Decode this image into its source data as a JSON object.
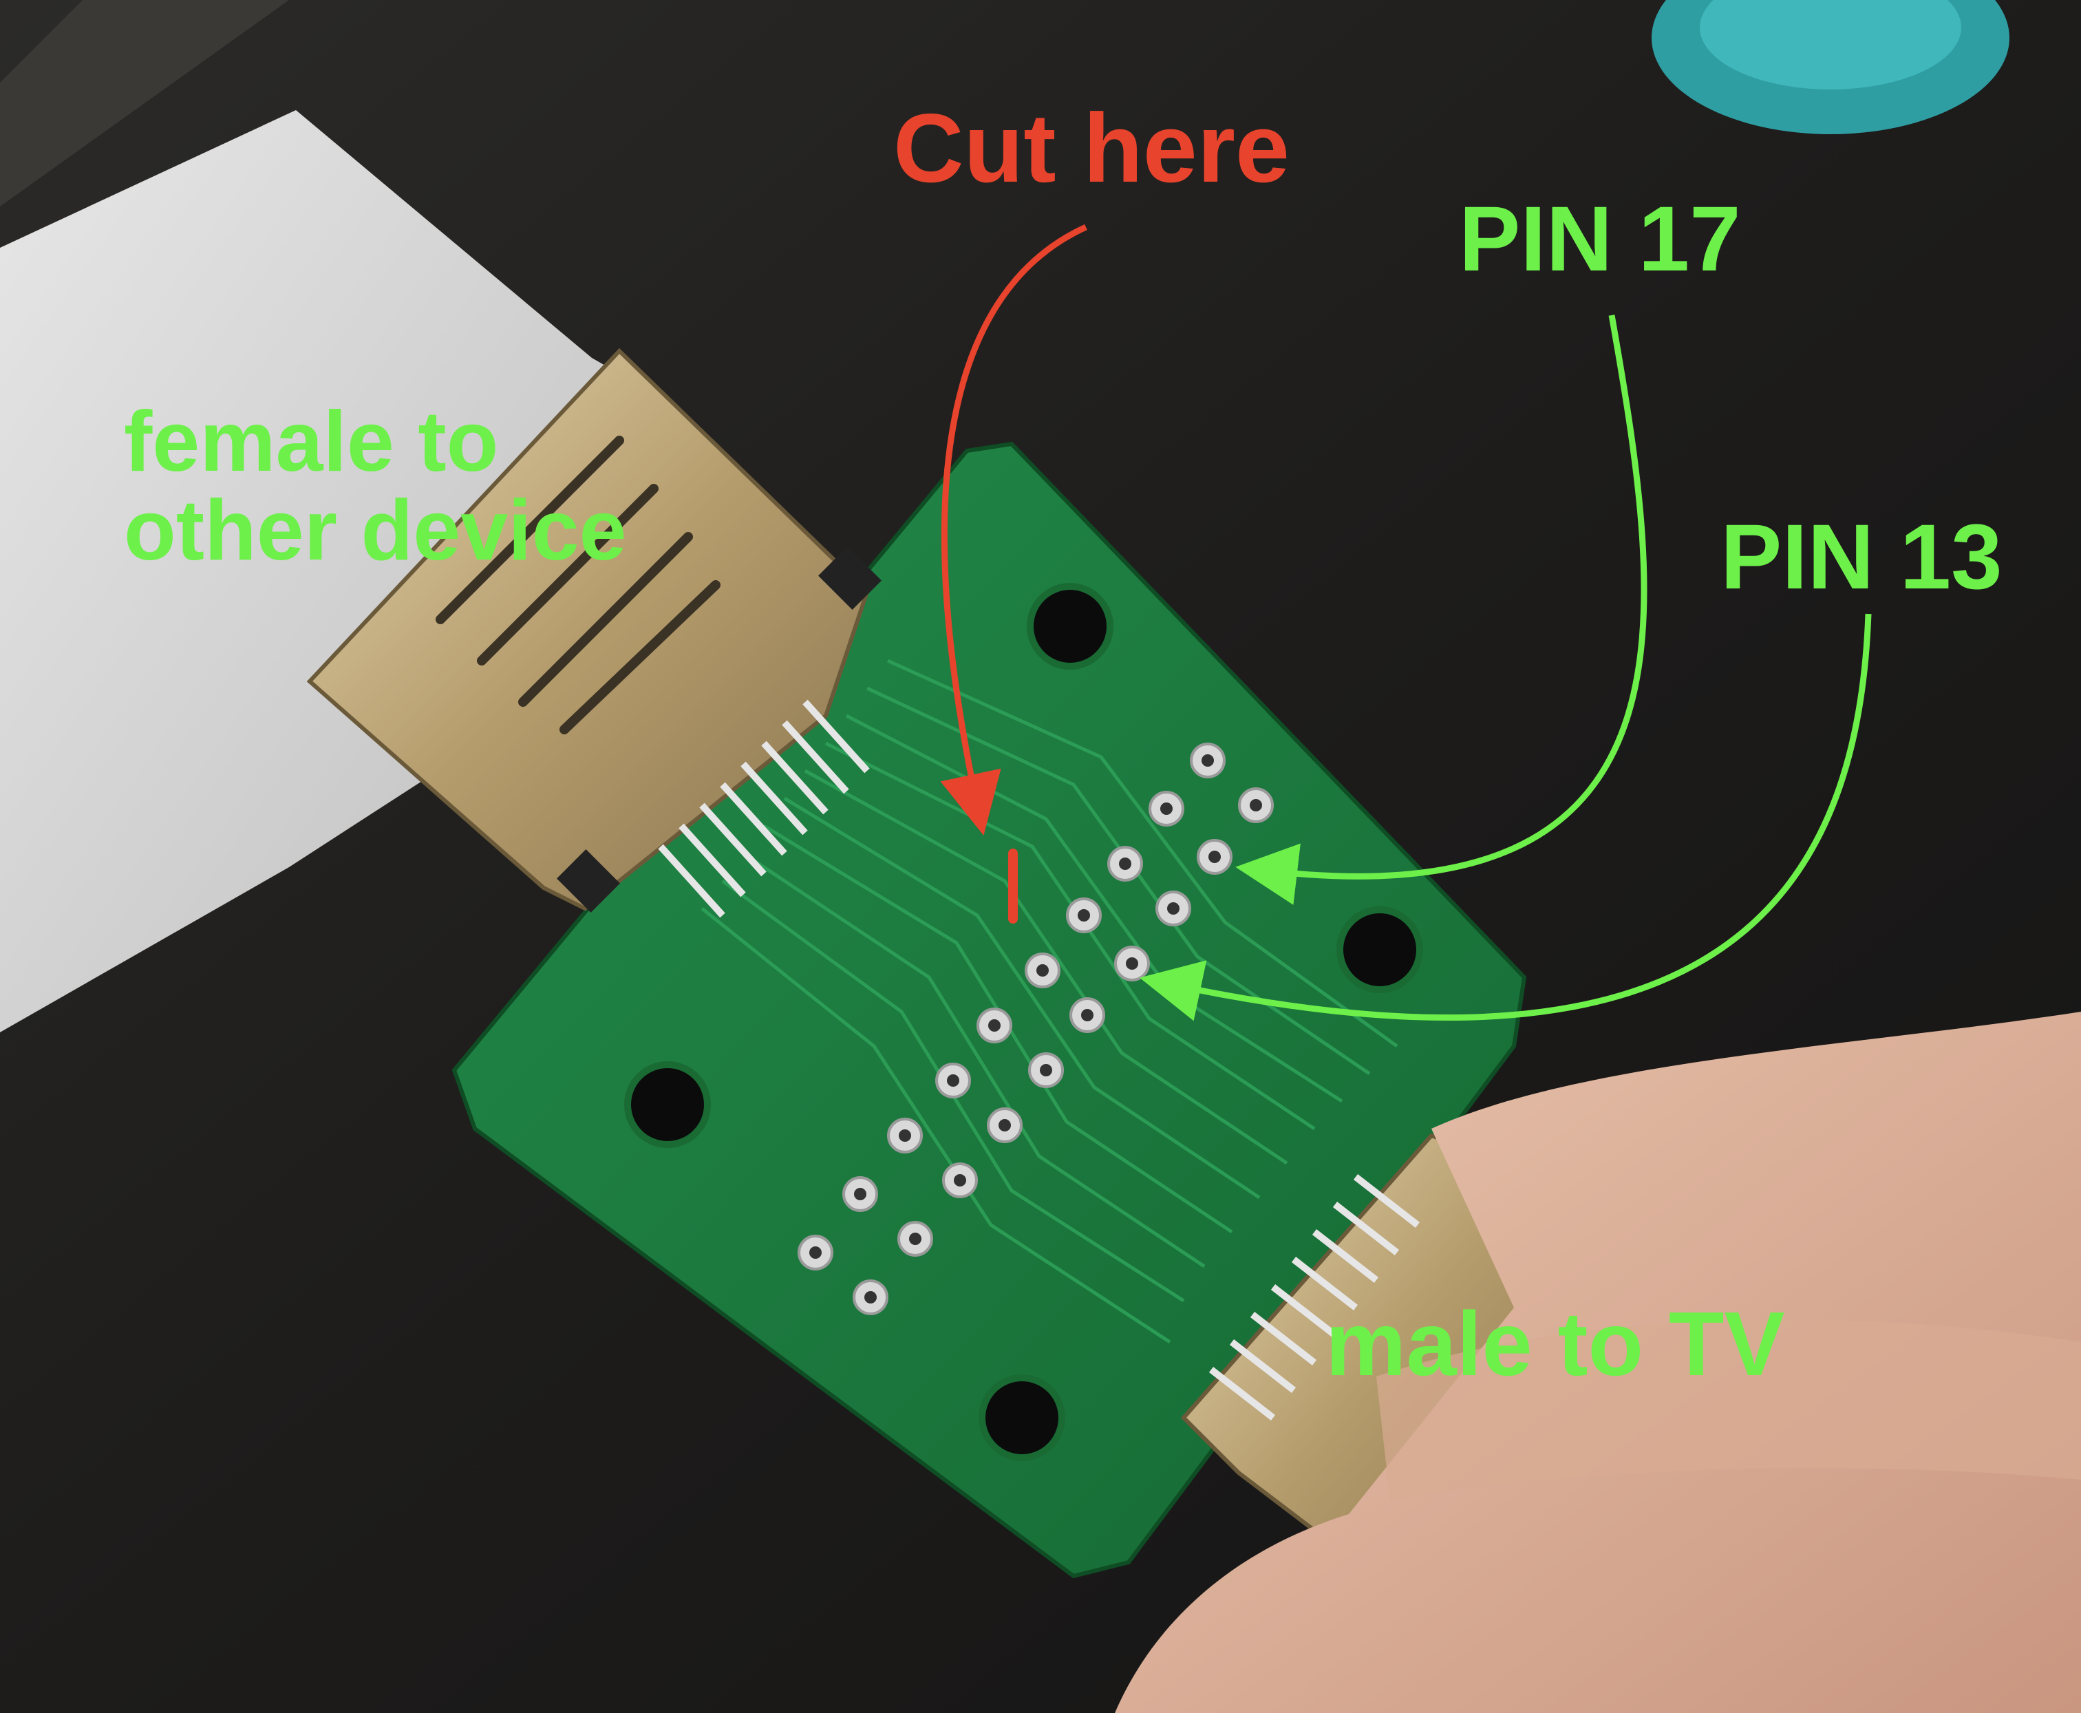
{
  "annotations": {
    "cut_here": "Cut here",
    "pin_17": "PIN 17",
    "pin_13": "PIN 13",
    "female_line1": "female to",
    "female_line2": "other device",
    "male": "male to TV"
  },
  "colors": {
    "cut_annotation": "#e8432c",
    "pin_annotation": "#6df04a",
    "pcb_green": "#1e7a3c",
    "connector_gold": "#c8b48a",
    "background_dark": "#1c1b1a"
  },
  "photo": {
    "subject": "hdmi-breakout-board",
    "icons": [
      "pcb-board",
      "female-hdmi-connector",
      "male-hdmi-connector",
      "thumb",
      "annotation-arrow"
    ]
  }
}
